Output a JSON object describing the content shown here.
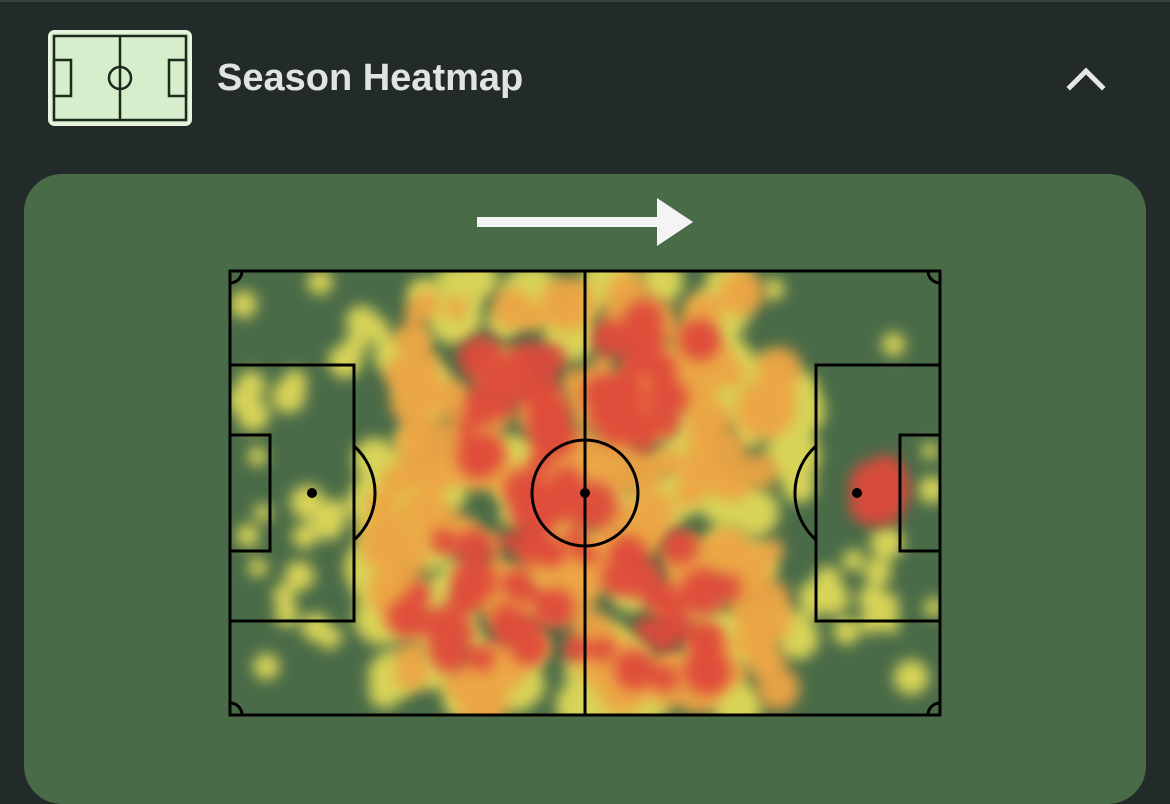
{
  "header": {
    "title": "Season Heatmap"
  }
}
